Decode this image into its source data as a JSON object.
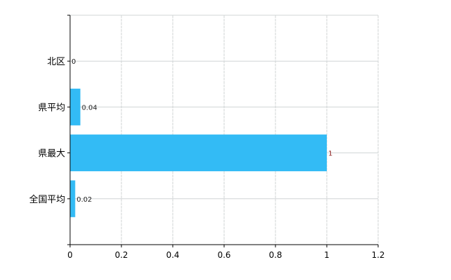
{
  "chart_data": {
    "type": "bar",
    "orientation": "horizontal",
    "categories": [
      "北区",
      "県平均",
      "県最大",
      "全国平均"
    ],
    "values": [
      0,
      0.04,
      1,
      0.02
    ],
    "data_labels": [
      "0",
      "0.04",
      "1",
      "0.02"
    ],
    "title": "",
    "xlabel": "",
    "ylabel": "",
    "xlim": [
      0,
      1.2
    ],
    "x_ticks": [
      0,
      0.2,
      0.4,
      0.6,
      0.8,
      1,
      1.2
    ],
    "x_tick_labels": [
      "0",
      "0.2",
      "0.4",
      "0.6",
      "0.8",
      "1",
      "1.2"
    ],
    "grid": true,
    "legend": "none",
    "colors": {
      "bar": "#33bbf5",
      "grid": "#d0d4d6",
      "axis": "#000000",
      "label": "#1a1a1a",
      "label_highlight": "#8b1a1a"
    }
  }
}
